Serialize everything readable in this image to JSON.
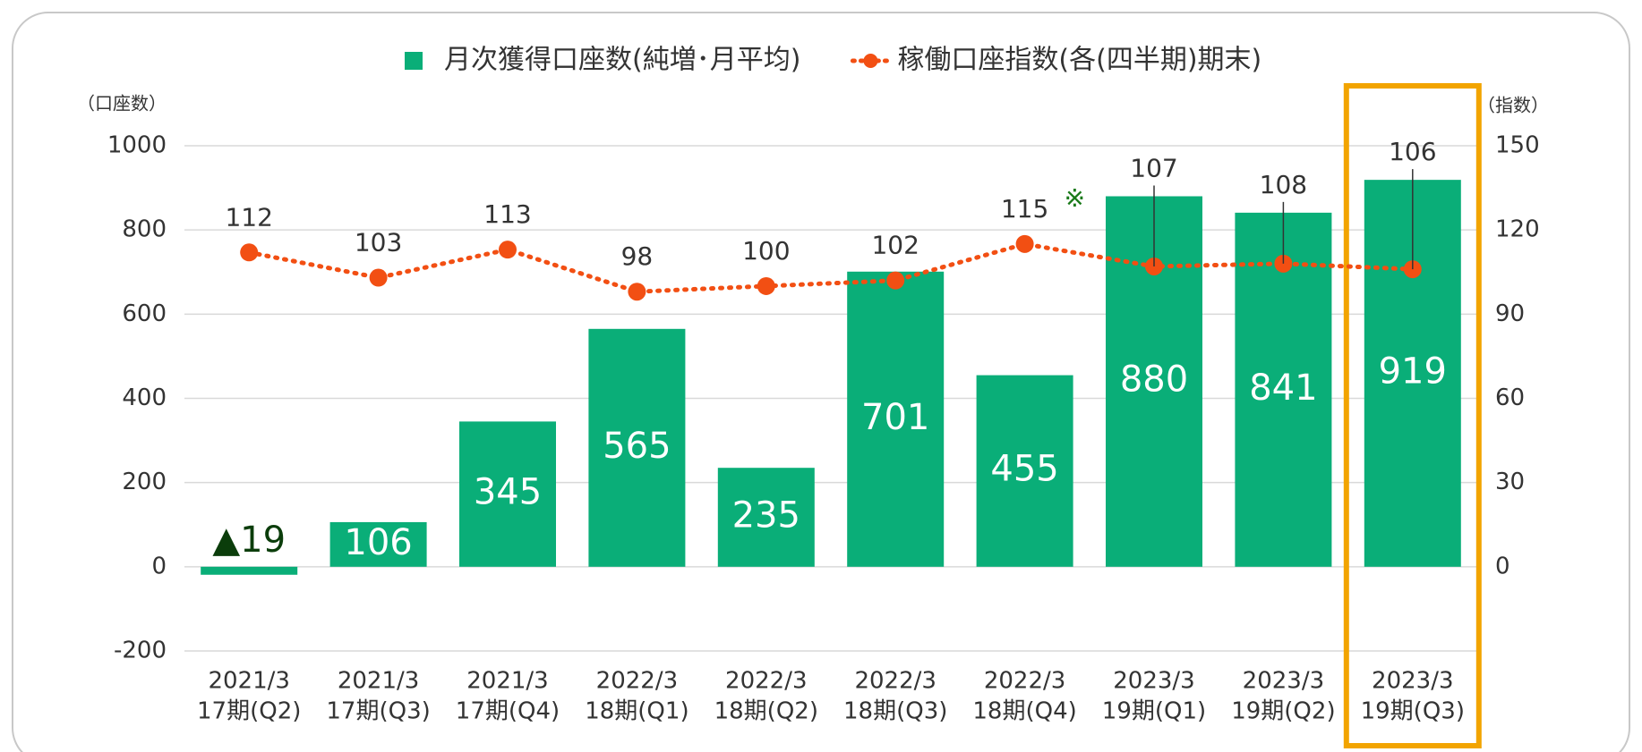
{
  "chart_data": {
    "type": "bar",
    "legend": "top",
    "grid": true,
    "y_label": "（口座数）",
    "y2_label": "（指数）",
    "annotation": "※",
    "categories": [
      [
        "2021/3",
        "17期(Q2)"
      ],
      [
        "2021/3",
        "17期(Q3)"
      ],
      [
        "2021/3",
        "17期(Q4)"
      ],
      [
        "2022/3",
        "18期(Q1)"
      ],
      [
        "2022/3",
        "18期(Q2)"
      ],
      [
        "2022/3",
        "18期(Q3)"
      ],
      [
        "2022/3",
        "18期(Q4)"
      ],
      [
        "2023/3",
        "19期(Q1)"
      ],
      [
        "2023/3",
        "19期(Q2)"
      ],
      [
        "2023/3",
        "19期(Q3)"
      ]
    ],
    "series": [
      {
        "name": "月次獲得口座数(純増･月平均)",
        "type": "bar",
        "color": "#0aae78",
        "values": [
          -19,
          106,
          345,
          565,
          235,
          701,
          455,
          880,
          841,
          919
        ],
        "value_labels": [
          "▲19",
          "106",
          "345",
          "565",
          "235",
          "701",
          "455",
          "880",
          "841",
          "919"
        ]
      },
      {
        "name": "稼働口座指数(各(四半期)期末)",
        "type": "line",
        "axis": "y2",
        "color": "#f24f13",
        "values": [
          112,
          103,
          113,
          98,
          100,
          102,
          115,
          107,
          108,
          106
        ]
      }
    ],
    "ylim": [
      -200,
      1000
    ],
    "yticks": [
      -200,
      0,
      200,
      400,
      600,
      800,
      1000
    ],
    "y2lim": [
      -30,
      150
    ],
    "y2ticks": [
      0,
      30,
      60,
      90,
      120,
      150
    ]
  }
}
